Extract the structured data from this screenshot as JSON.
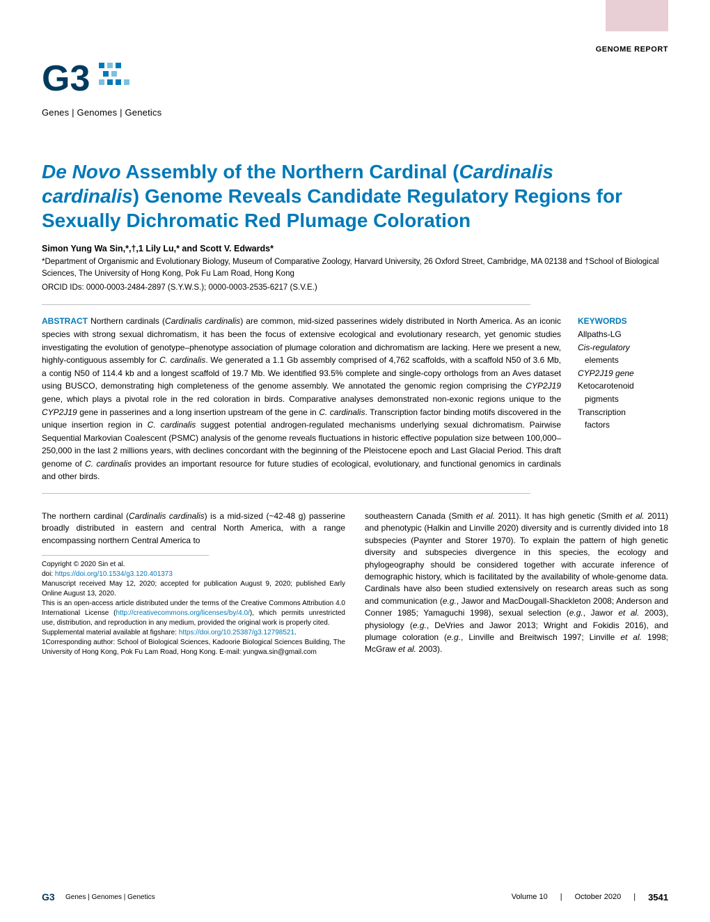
{
  "category_label": "GENOME REPORT",
  "logo": {
    "g3_text": "G3",
    "tagline": "Genes | Genomes | Genetics",
    "colors": {
      "g": "#003a5d",
      "dots": "#0079b8"
    }
  },
  "title_parts": {
    "p1": "De Novo",
    "p2": " Assembly of the Northern Cardinal (",
    "p3": "Cardinalis cardinalis",
    "p4": ") Genome Reveals Candidate Regulatory Regions for Sexually Dichromatic Red Plumage Coloration"
  },
  "authors": "Simon Yung Wa Sin,*,†,1 Lily Lu,* and Scott V. Edwards*",
  "affiliations": "*Department of Organismic and Evolutionary Biology, Museum of Comparative Zoology, Harvard University, 26 Oxford Street, Cambridge, MA 02138 and †School of Biological Sciences, The University of Hong Kong, Pok Fu Lam Road, Hong Kong",
  "orcid": "ORCID IDs: 0000-0003-2484-2897 (S.Y.W.S.); 0000-0003-2535-6217 (S.V.E.)",
  "abstract": {
    "label": "ABSTRACT",
    "text_pre": "  Northern cardinals (",
    "sp1": "Cardinalis cardinalis",
    "text_mid1": ") are common, mid-sized passerines widely distributed in North America. As an iconic species with strong sexual dichromatism, it has been the focus of extensive ecological and evolutionary research, yet genomic studies investigating the evolution of genotype–phenotype association of plumage coloration and dichromatism are lacking. Here we present a new, highly-contiguous assembly for ",
    "sp2": "C. cardinalis",
    "text_mid2": ". We generated a 1.1 Gb assembly comprised of 4,762 scaffolds, with a scaffold N50 of 3.6 Mb, a contig N50 of 114.4 kb and a longest scaffold of 19.7 Mb. We identified 93.5% complete and single-copy orthologs from an Aves dataset using BUSCO, demonstrating high completeness of the genome assembly. We annotated the genomic region comprising the ",
    "sp3": "CYP2J19",
    "text_mid3": " gene, which plays a pivotal role in the red coloration in birds. Comparative analyses demonstrated non-exonic regions unique to the ",
    "sp4": "CYP2J19",
    "text_mid4": " gene in passerines and a long insertion upstream of the gene in ",
    "sp5": "C. cardinalis",
    "text_mid5": ". Transcription factor binding motifs discovered in the unique insertion region in ",
    "sp6": "C. cardinalis",
    "text_mid6": " suggest potential androgen-regulated mechanisms underlying sexual dichromatism. Pairwise Sequential Markovian Coalescent (PSMC) analysis of the genome reveals fluctuations in historic effective population size between 100,000–250,000 in the last 2 millions years, with declines concordant with the beginning of the Pleistocene epoch and Last Glacial Period. This draft genome of ",
    "sp7": "C. cardinalis",
    "text_end": " provides an important resource for future studies of ecological, evolutionary, and functional genomics in cardinals and other birds."
  },
  "keywords": {
    "label": "KEYWORDS",
    "items": [
      {
        "text": "Allpaths-LG",
        "indent": false,
        "italic": false
      },
      {
        "text": "Cis-regulatory",
        "indent": false,
        "italic": true
      },
      {
        "text": "elements",
        "indent": true,
        "italic": false
      },
      {
        "text": "CYP2J19 gene",
        "indent": false,
        "italic": true
      },
      {
        "text": "Ketocarotenoid",
        "indent": false,
        "italic": false
      },
      {
        "text": "pigments",
        "indent": true,
        "italic": false
      },
      {
        "text": "Transcription",
        "indent": false,
        "italic": false
      },
      {
        "text": "factors",
        "indent": true,
        "italic": false
      }
    ]
  },
  "body": {
    "col1_p1_pre": "The northern cardinal (",
    "col1_p1_sp": "Cardinalis cardinalis",
    "col1_p1_post": ") is a mid-sized (~42-48 g) passerine broadly distributed in eastern and central North America, with a range encompassing northern Central America to",
    "col2_p1_pre": "southeastern Canada (Smith ",
    "col2_p1_et1": "et al.",
    "col2_p1_mid1": " 2011). It has high genetic (Smith ",
    "col2_p1_et2": "et al.",
    "col2_p1_mid2": " 2011) and phenotypic (Halkin and Linville 2020) diversity and is currently divided into 18 subspecies (Paynter and Storer 1970). To explain the pattern of high genetic diversity and subspecies divergence in this species, the ecology and phylogeography should be considered together with accurate inference of demographic history, which is facilitated by the availability of whole-genome data. Cardinals have also been studied extensively on research areas such as song and communication (",
    "col2_p1_eg1": "e.g.",
    "col2_p1_mid3": ", Jawor and MacDougall-Shackleton 2008; Anderson and Conner 1985; Yamaguchi 1998), sexual selection (",
    "col2_p1_eg2": "e.g.",
    "col2_p1_mid4": ", Jawor ",
    "col2_p1_et3": "et al.",
    "col2_p1_mid5": " 2003), physiology (",
    "col2_p1_eg3": "e.g.",
    "col2_p1_mid6": ", DeVries and Jawor 2013; Wright and Fokidis 2016), and plumage coloration (",
    "col2_p1_eg4": "e.g.",
    "col2_p1_mid7": ", Linville and Breitwisch 1997; Linville ",
    "col2_p1_et4": "et al.",
    "col2_p1_mid8": " 1998; McGraw ",
    "col2_p1_et5": "et al.",
    "col2_p1_end": " 2003)."
  },
  "footnotes": {
    "copyright": "Copyright © 2020 Sin et al.",
    "doi_label": "doi: ",
    "doi": "https://doi.org/10.1534/g3.120.401373",
    "manuscript": "Manuscript received May 12, 2020; accepted for publication August 9, 2020; published Early Online August 13, 2020.",
    "license_pre": "This is an open-access article distributed under the terms of the Creative Commons Attribution 4.0 International License (",
    "license_url": "http://creativecommons.org/licenses/by/4.0/",
    "license_post": "), which permits unrestricted use, distribution, and reproduction in any medium, provided the original work is properly cited.",
    "supp_pre": "Supplemental material available at figshare: ",
    "supp_url": "https://doi.org/10.25387/g3.12798521",
    "supp_post": ".",
    "corresponding": "1Corresponding author: School of Biological Sciences, Kadoorie Biological Sciences Building, The University of Hong Kong, Pok Fu Lam Road, Hong Kong. E-mail: yungwa.sin@gmail.com"
  },
  "footer": {
    "logo_text": "Genes | Genomes | Genetics",
    "volume": "Volume 10",
    "sep": "|",
    "date": "October 2020",
    "page": "3541"
  },
  "colors": {
    "accent": "#0079b8",
    "badge": "#e8cfd5",
    "rule": "#bfbfbf",
    "dark": "#003a5d"
  }
}
